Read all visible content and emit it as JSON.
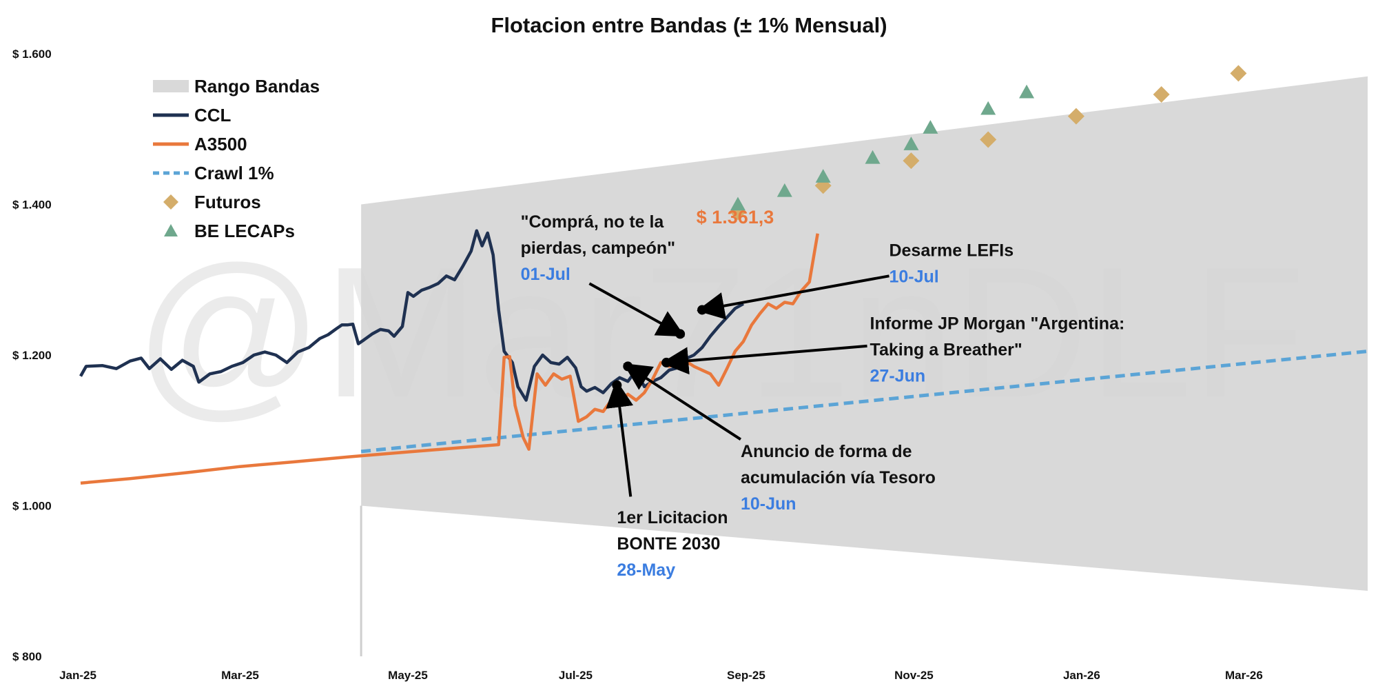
{
  "chart_data": {
    "type": "line",
    "title": "Flotacion entre Bandas  (± 1% Mensual)",
    "watermark": "@Mar71nDLF",
    "ylim": [
      800,
      1600
    ],
    "xlim": [
      "2025-01-01",
      "2026-04-15"
    ],
    "y_ticks": [
      {
        "value": 1600,
        "label": "$ 1.600"
      },
      {
        "value": 1400,
        "label": "$ 1.400"
      },
      {
        "value": 1200,
        "label": "$ 1.200"
      },
      {
        "value": 1000,
        "label": "$ 1.000"
      },
      {
        "value": 800,
        "label": "$ 800"
      }
    ],
    "x_ticks": [
      {
        "date": "2025-01-01",
        "label": "Jan-25"
      },
      {
        "date": "2025-03-01",
        "label": "Mar-25"
      },
      {
        "date": "2025-05-01",
        "label": "May-25"
      },
      {
        "date": "2025-07-01",
        "label": "Jul-25"
      },
      {
        "date": "2025-09-01",
        "label": "Sep-25"
      },
      {
        "date": "2025-11-01",
        "label": "Nov-25"
      },
      {
        "date": "2026-01-01",
        "label": "Jan-26"
      },
      {
        "date": "2026-03-01",
        "label": "Mar-26"
      }
    ],
    "grid": false,
    "legend_position": "top-left",
    "legend": [
      {
        "key": "band",
        "label": "Rango Bandas",
        "marker": "box",
        "color": "#d9d9d9"
      },
      {
        "key": "ccl",
        "label": "CCL",
        "marker": "line",
        "color": "#1f3151"
      },
      {
        "key": "a3500",
        "label": "A3500",
        "marker": "line",
        "color": "#e9783c"
      },
      {
        "key": "crawl",
        "label": "Crawl 1%",
        "marker": "dash",
        "color": "#5ba4d6"
      },
      {
        "key": "futuros",
        "label": "Futuros",
        "marker": "diamond",
        "color": "#d4ad6a"
      },
      {
        "key": "lecaps",
        "label": "BE LECAPs",
        "marker": "triangle",
        "color": "#6fa88d"
      }
    ],
    "band": {
      "name": "Rango Bandas",
      "color": "#d9d9d9",
      "start": "2025-04-14",
      "end": "2026-04-15",
      "upper": [
        1400,
        1570
      ],
      "lower": [
        1000,
        887
      ]
    },
    "series": [
      {
        "name": "CCL",
        "color": "#1f3151",
        "points": [
          [
            "2025-01-02",
            1172
          ],
          [
            "2025-01-04",
            1185
          ],
          [
            "2025-01-10",
            1186
          ],
          [
            "2025-01-15",
            1182
          ],
          [
            "2025-01-20",
            1192
          ],
          [
            "2025-01-24",
            1196
          ],
          [
            "2025-01-27",
            1182
          ],
          [
            "2025-01-31",
            1195
          ],
          [
            "2025-02-04",
            1181
          ],
          [
            "2025-02-08",
            1193
          ],
          [
            "2025-02-12",
            1185
          ],
          [
            "2025-02-14",
            1164
          ],
          [
            "2025-02-18",
            1175
          ],
          [
            "2025-02-22",
            1178
          ],
          [
            "2025-02-26",
            1185
          ],
          [
            "2025-03-02",
            1190
          ],
          [
            "2025-03-06",
            1200
          ],
          [
            "2025-03-10",
            1204
          ],
          [
            "2025-03-14",
            1200
          ],
          [
            "2025-03-18",
            1190
          ],
          [
            "2025-03-22",
            1204
          ],
          [
            "2025-03-26",
            1210
          ],
          [
            "2025-03-30",
            1222
          ],
          [
            "2025-04-02",
            1227
          ],
          [
            "2025-04-05",
            1235
          ],
          [
            "2025-04-07",
            1240
          ],
          [
            "2025-04-09",
            1240
          ],
          [
            "2025-04-11",
            1241
          ],
          [
            "2025-04-13",
            1215
          ],
          [
            "2025-04-15",
            1220
          ],
          [
            "2025-04-18",
            1228
          ],
          [
            "2025-04-21",
            1234
          ],
          [
            "2025-04-24",
            1232
          ],
          [
            "2025-04-26",
            1225
          ],
          [
            "2025-04-29",
            1238
          ],
          [
            "2025-05-01",
            1283
          ],
          [
            "2025-05-03",
            1278
          ],
          [
            "2025-05-06",
            1286
          ],
          [
            "2025-05-09",
            1290
          ],
          [
            "2025-05-12",
            1295
          ],
          [
            "2025-05-15",
            1305
          ],
          [
            "2025-05-18",
            1300
          ],
          [
            "2025-05-21",
            1318
          ],
          [
            "2025-05-24",
            1338
          ],
          [
            "2025-05-26",
            1365
          ],
          [
            "2025-05-28",
            1345
          ],
          [
            "2025-05-30",
            1362
          ],
          [
            "2025-06-01",
            1333
          ],
          [
            "2025-06-03",
            1260
          ],
          [
            "2025-06-05",
            1205
          ],
          [
            "2025-06-08",
            1190
          ],
          [
            "2025-06-10",
            1158
          ],
          [
            "2025-06-13",
            1140
          ],
          [
            "2025-06-16",
            1185
          ],
          [
            "2025-06-19",
            1200
          ],
          [
            "2025-06-22",
            1190
          ],
          [
            "2025-06-25",
            1188
          ],
          [
            "2025-06-28",
            1197
          ],
          [
            "2025-07-01",
            1183
          ],
          [
            "2025-07-03",
            1158
          ],
          [
            "2025-07-05",
            1152
          ],
          [
            "2025-07-08",
            1157
          ],
          [
            "2025-07-11",
            1150
          ],
          [
            "2025-07-14",
            1162
          ],
          [
            "2025-07-17",
            1170
          ],
          [
            "2025-07-20",
            1165
          ],
          [
            "2025-07-23",
            1180
          ],
          [
            "2025-07-26",
            1158
          ],
          [
            "2025-07-29",
            1165
          ],
          [
            "2025-08-01",
            1170
          ],
          [
            "2025-08-04",
            1180
          ],
          [
            "2025-08-07",
            1183
          ],
          [
            "2025-08-10",
            1195
          ],
          [
            "2025-08-13",
            1200
          ],
          [
            "2025-08-16",
            1210
          ],
          [
            "2025-08-19",
            1225
          ],
          [
            "2025-08-22",
            1238
          ],
          [
            "2025-08-25",
            1250
          ],
          [
            "2025-08-28",
            1262
          ],
          [
            "2025-08-31",
            1268
          ]
        ]
      },
      {
        "name": "A3500",
        "color": "#e9783c",
        "points": [
          [
            "2025-01-02",
            1030
          ],
          [
            "2025-01-20",
            1036
          ],
          [
            "2025-02-10",
            1044
          ],
          [
            "2025-03-01",
            1052
          ],
          [
            "2025-03-20",
            1058
          ],
          [
            "2025-04-10",
            1065
          ],
          [
            "2025-04-30",
            1071
          ],
          [
            "2025-05-20",
            1077
          ],
          [
            "2025-06-03",
            1081
          ],
          [
            "2025-06-05",
            1197
          ],
          [
            "2025-06-07",
            1198
          ],
          [
            "2025-06-09",
            1133
          ],
          [
            "2025-06-12",
            1090
          ],
          [
            "2025-06-14",
            1075
          ],
          [
            "2025-06-17",
            1175
          ],
          [
            "2025-06-20",
            1160
          ],
          [
            "2025-06-23",
            1175
          ],
          [
            "2025-06-26",
            1168
          ],
          [
            "2025-06-29",
            1172
          ],
          [
            "2025-07-02",
            1112
          ],
          [
            "2025-07-05",
            1118
          ],
          [
            "2025-07-08",
            1128
          ],
          [
            "2025-07-11",
            1125
          ],
          [
            "2025-07-14",
            1140
          ],
          [
            "2025-07-17",
            1138
          ],
          [
            "2025-07-20",
            1148
          ],
          [
            "2025-07-23",
            1140
          ],
          [
            "2025-07-26",
            1150
          ],
          [
            "2025-07-29",
            1168
          ],
          [
            "2025-08-01",
            1190
          ],
          [
            "2025-08-04",
            1185
          ],
          [
            "2025-08-07",
            1188
          ],
          [
            "2025-08-10",
            1192
          ],
          [
            "2025-08-13",
            1185
          ],
          [
            "2025-08-16",
            1180
          ],
          [
            "2025-08-19",
            1175
          ],
          [
            "2025-08-22",
            1160
          ],
          [
            "2025-08-25",
            1182
          ],
          [
            "2025-08-28",
            1205
          ],
          [
            "2025-08-31",
            1218
          ],
          [
            "2025-09-03",
            1240
          ],
          [
            "2025-09-06",
            1255
          ],
          [
            "2025-09-09",
            1268
          ],
          [
            "2025-09-12",
            1262
          ],
          [
            "2025-09-15",
            1270
          ],
          [
            "2025-09-18",
            1268
          ],
          [
            "2025-09-21",
            1285
          ],
          [
            "2025-09-24",
            1297
          ],
          [
            "2025-09-27",
            1361.3
          ]
        ]
      }
    ],
    "crawl": {
      "name": "Crawl 1%",
      "color": "#5ba4d6",
      "points": [
        [
          "2025-04-14",
          1072
        ],
        [
          "2026-04-15",
          1205
        ]
      ]
    },
    "futuros": {
      "name": "Futuros",
      "color": "#d4ad6a",
      "points": [
        [
          "2025-08-29",
          1390
        ],
        [
          "2025-09-29",
          1425
        ],
        [
          "2025-10-31",
          1458
        ],
        [
          "2025-11-28",
          1486
        ],
        [
          "2025-12-30",
          1517
        ],
        [
          "2026-01-30",
          1546
        ],
        [
          "2026-02-27",
          1574
        ]
      ]
    },
    "lecaps": {
      "name": "BE LECAPs",
      "color": "#6fa88d",
      "points": [
        [
          "2025-08-29",
          1400
        ],
        [
          "2025-09-15",
          1418
        ],
        [
          "2025-09-29",
          1437
        ],
        [
          "2025-10-17",
          1462
        ],
        [
          "2025-10-31",
          1480
        ],
        [
          "2025-11-07",
          1502
        ],
        [
          "2025-11-28",
          1527
        ],
        [
          "2025-12-12",
          1549
        ]
      ]
    },
    "price_label": {
      "text": "$ 1.361,3",
      "date": "2025-08-28",
      "value": 1384
    },
    "annotations": [
      {
        "key": "a1",
        "lines": [
          "\"Comprá, no te la",
          "pierdas, campeón\""
        ],
        "date_label": "01-Jul",
        "point": [
          "2025-08-08",
          1228
        ],
        "arrow_from": [
          "2025-07-06",
          1295
        ],
        "text_at": [
          "2025-06-11",
          1375
        ]
      },
      {
        "key": "a2",
        "lines": [
          "Desarme LEFIs"
        ],
        "date_label": "10-Jul",
        "point": [
          "2025-08-16",
          1260
        ],
        "arrow_from": [
          "2025-10-23",
          1305
        ],
        "text_at": [
          "2025-10-23",
          1337
        ]
      },
      {
        "key": "a3",
        "lines": [
          "Informe JP Morgan \"Argentina:",
          "Taking a Breather\""
        ],
        "date_label": "27-Jun",
        "point": [
          "2025-08-03",
          1190
        ],
        "arrow_from": [
          "2025-10-15",
          1212
        ],
        "text_at": [
          "2025-10-16",
          1240
        ]
      },
      {
        "key": "a4",
        "lines": [
          "Anuncio de forma de",
          "acumulación vía Tesoro"
        ],
        "date_label": "10-Jun",
        "point": [
          "2025-07-20",
          1185
        ],
        "arrow_from": [
          "2025-08-30",
          1088
        ],
        "text_at": [
          "2025-08-30",
          1070
        ]
      },
      {
        "key": "a5",
        "lines": [
          "1er Licitacion",
          "BONTE 2030"
        ],
        "date_label": "28-May",
        "point": [
          "2025-07-16",
          1160
        ],
        "arrow_from": [
          "2025-07-21",
          1012
        ],
        "text_at": [
          "2025-07-16",
          982
        ]
      }
    ]
  }
}
